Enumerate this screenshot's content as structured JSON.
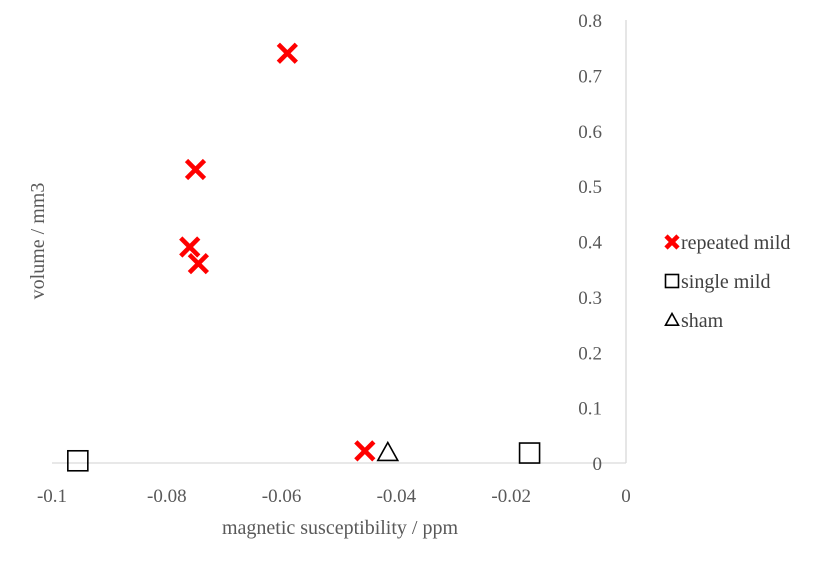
{
  "chart_data": {
    "type": "scatter",
    "xlabel": "magnetic susceptibility / ppm",
    "ylabel": "volume / mm3",
    "xlim": [
      -0.1,
      0
    ],
    "ylim": [
      0,
      0.8
    ],
    "xticks": [
      -0.1,
      -0.08,
      -0.06,
      -0.04,
      -0.02,
      0
    ],
    "xtick_labels": [
      "-0.1",
      "-0.08",
      "-0.06",
      "-0.04",
      "-0.02",
      "0"
    ],
    "yticks": [
      0,
      0.1,
      0.2,
      0.3,
      0.4,
      0.5,
      0.6,
      0.7,
      0.8
    ],
    "ytick_labels": [
      "0",
      "0.1",
      "0.2",
      "0.3",
      "0.4",
      "0.5",
      "0.6",
      "0.7",
      "0.8"
    ],
    "y_axis_position": "right",
    "grid": false,
    "legend_position": "right",
    "series": [
      {
        "name": "repeated mild",
        "marker": "x",
        "color": "#ff0000",
        "points": [
          {
            "x": -0.059,
            "y": 0.74
          },
          {
            "x": -0.075,
            "y": 0.53
          },
          {
            "x": -0.076,
            "y": 0.39
          },
          {
            "x": -0.0745,
            "y": 0.36
          },
          {
            "x": -0.0455,
            "y": 0.022
          }
        ]
      },
      {
        "name": "single mild",
        "marker": "square",
        "color": "#000000",
        "points": [
          {
            "x": -0.0955,
            "y": 0.004
          },
          {
            "x": -0.0168,
            "y": 0.018
          }
        ]
      },
      {
        "name": "sham",
        "marker": "triangle",
        "color": "#000000",
        "points": [
          {
            "x": -0.0415,
            "y": 0.019
          }
        ]
      }
    ]
  }
}
